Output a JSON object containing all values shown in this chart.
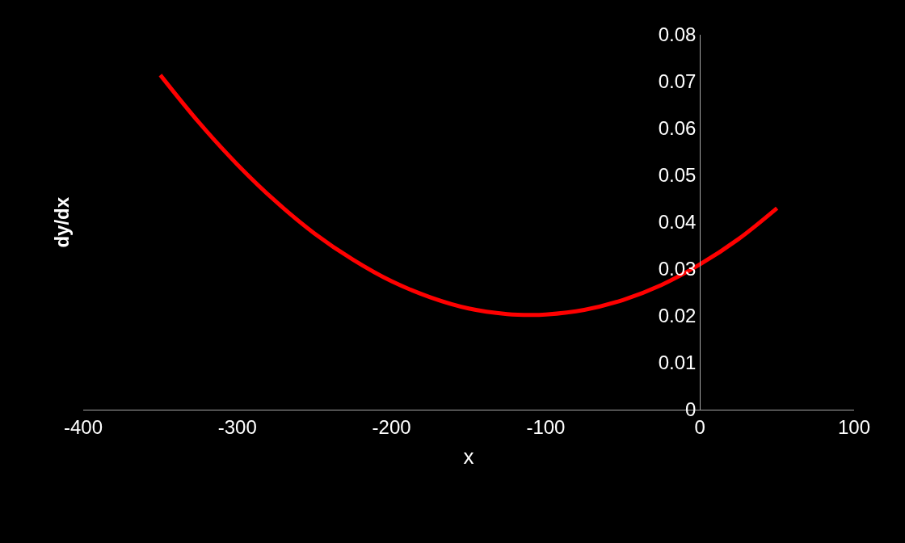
{
  "chart_data": {
    "type": "line",
    "xlabel": "x",
    "ylabel": "dy/dx",
    "x": [
      -350,
      -325,
      -300,
      -275,
      -250,
      -225,
      -200,
      -175,
      -150,
      -125,
      -110,
      -100,
      -75,
      -50,
      -25,
      0,
      25,
      50
    ],
    "series": [
      {
        "color": "#ff0000",
        "values": [
          0.0714,
          0.0613,
          0.0523,
          0.0444,
          0.0376,
          0.032,
          0.0274,
          0.024,
          0.0216,
          0.0204,
          0.0202,
          0.0203,
          0.0213,
          0.0234,
          0.0266,
          0.031,
          0.0364,
          0.043
        ]
      }
    ],
    "xlim": [
      -400,
      100
    ],
    "xticks": [
      -400,
      -300,
      -200,
      -100,
      0,
      100
    ],
    "ylim": [
      0,
      0.08
    ],
    "yticks": [
      0,
      0.01,
      0.02,
      0.03,
      0.04,
      0.05,
      0.06,
      0.07,
      0.08
    ],
    "grid": false,
    "legend": false,
    "marker": "none",
    "line_style": "solid"
  }
}
